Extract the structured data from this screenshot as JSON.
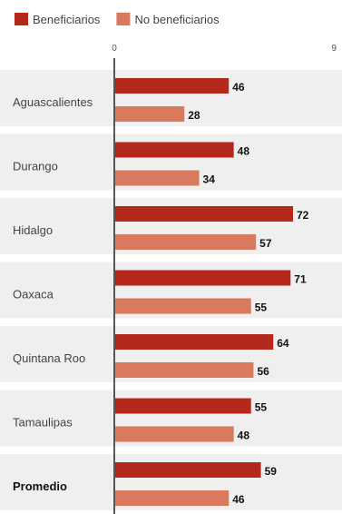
{
  "chart_data": {
    "type": "bar",
    "orientation": "horizontal",
    "categories": [
      "Aguascalientes",
      "Durango",
      "Hidalgo",
      "Oaxaca",
      "Quintana Roo",
      "Tamaulipas",
      "Promedio"
    ],
    "bold_categories": [
      "Promedio"
    ],
    "series": [
      {
        "name": "Beneficiarios",
        "color": "#b5281c",
        "values": [
          46,
          48,
          72,
          71,
          64,
          55,
          59
        ]
      },
      {
        "name": "No beneficiarios",
        "color": "#d97a5e",
        "values": [
          28,
          34,
          57,
          55,
          56,
          48,
          46
        ]
      }
    ],
    "tick_labels": [
      "0",
      "9"
    ],
    "xlim": [
      0,
      90
    ],
    "legend_position": "top-left",
    "row_background": "#efefef"
  }
}
